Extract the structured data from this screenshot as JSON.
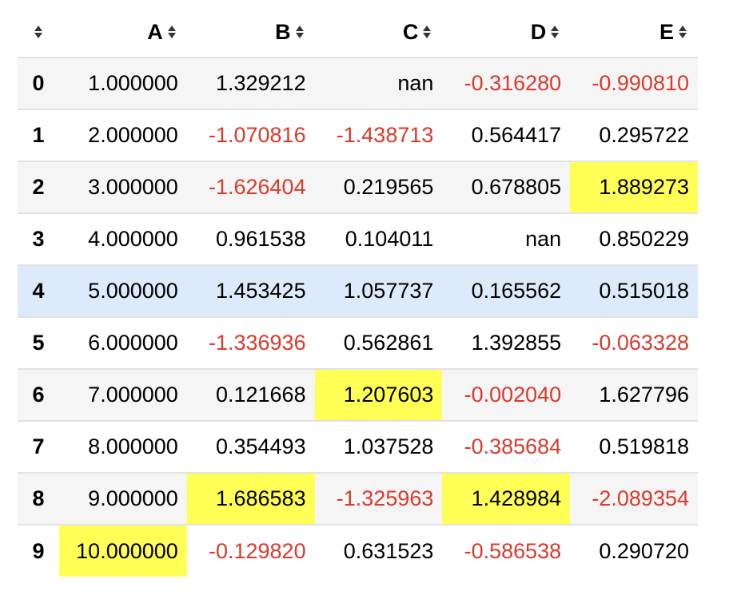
{
  "table": {
    "columns": [
      "A",
      "B",
      "C",
      "D",
      "E"
    ],
    "rows": [
      {
        "index": "0",
        "cells": [
          "1.000000",
          "1.329212",
          "nan",
          "-0.316280",
          "-0.990810"
        ]
      },
      {
        "index": "1",
        "cells": [
          "2.000000",
          "-1.070816",
          "-1.438713",
          "0.564417",
          "0.295722"
        ]
      },
      {
        "index": "2",
        "cells": [
          "3.000000",
          "-1.626404",
          "0.219565",
          "0.678805",
          "1.889273"
        ]
      },
      {
        "index": "3",
        "cells": [
          "4.000000",
          "0.961538",
          "0.104011",
          "nan",
          "0.850229"
        ]
      },
      {
        "index": "4",
        "cells": [
          "5.000000",
          "1.453425",
          "1.057737",
          "0.165562",
          "0.515018"
        ]
      },
      {
        "index": "5",
        "cells": [
          "6.000000",
          "-1.336936",
          "0.562861",
          "1.392855",
          "-0.063328"
        ]
      },
      {
        "index": "6",
        "cells": [
          "7.000000",
          "0.121668",
          "1.207603",
          "-0.002040",
          "1.627796"
        ]
      },
      {
        "index": "7",
        "cells": [
          "8.000000",
          "0.354493",
          "1.037528",
          "-0.385684",
          "0.519818"
        ]
      },
      {
        "index": "8",
        "cells": [
          "9.000000",
          "1.686583",
          "-1.325963",
          "1.428984",
          "-2.089354"
        ]
      },
      {
        "index": "9",
        "cells": [
          "10.000000",
          "-0.129820",
          "0.631523",
          "-0.586538",
          "0.290720"
        ]
      }
    ]
  },
  "colors": {
    "negative": "#d93a2b",
    "column_max_highlight": "#ffff55",
    "hover_row": "#ddeafb",
    "striped_row": "#f5f5f5"
  },
  "icons": {
    "sort": "sort-arrows-icon"
  }
}
